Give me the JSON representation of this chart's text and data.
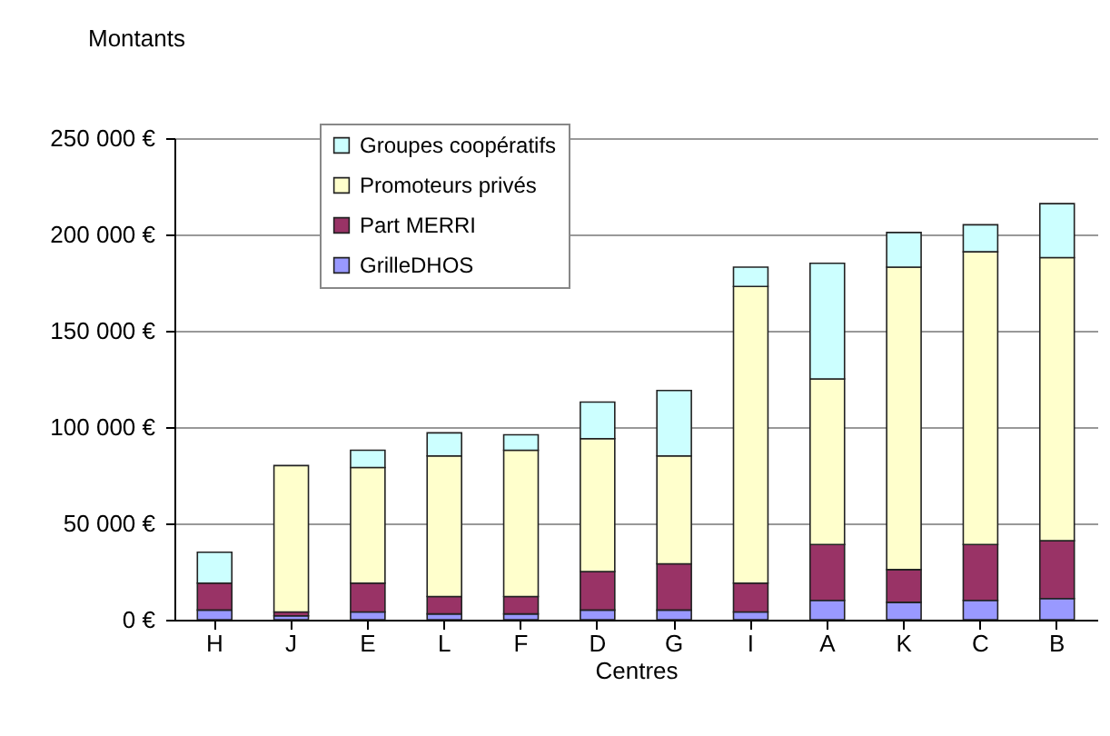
{
  "chart_data": {
    "type": "bar",
    "stacked": true,
    "ylabel": "Montants",
    "xlabel": "Centres",
    "categories": [
      "H",
      "J",
      "E",
      "L",
      "F",
      "D",
      "G",
      "I",
      "A",
      "K",
      "C",
      "B"
    ],
    "series": [
      {
        "name": "GrilleDHOS",
        "color": "#9999ff",
        "values": [
          5000,
          2000,
          4000,
          3000,
          3000,
          5000,
          5000,
          4000,
          10000,
          9000,
          10000,
          11000
        ]
      },
      {
        "name": "Part MERRI",
        "color": "#993366",
        "values": [
          14000,
          2000,
          15000,
          9000,
          9000,
          20000,
          24000,
          15000,
          29000,
          17000,
          29000,
          30000
        ]
      },
      {
        "name": "Promoteurs privés",
        "color": "#ffffcc",
        "values": [
          null,
          76000,
          60000,
          73000,
          76000,
          69000,
          56000,
          154000,
          86000,
          157000,
          152000,
          147000
        ]
      },
      {
        "name": "Groupes coopératifs",
        "color": "#ccffff",
        "values": [
          16000,
          null,
          9000,
          12000,
          8000,
          19000,
          34000,
          10000,
          60000,
          18000,
          14000,
          28000
        ]
      }
    ],
    "ylim": [
      0,
      250000
    ],
    "yticks": [
      {
        "value": 0,
        "label": "0 €"
      },
      {
        "value": 50000,
        "label": "50 000 €"
      },
      {
        "value": 100000,
        "label": "100 000 €"
      },
      {
        "value": 150000,
        "label": "150 000 €"
      },
      {
        "value": 200000,
        "label": "200 000 €"
      },
      {
        "value": 250000,
        "label": "250 000 €"
      }
    ],
    "grid": "y",
    "legend": "top left"
  }
}
